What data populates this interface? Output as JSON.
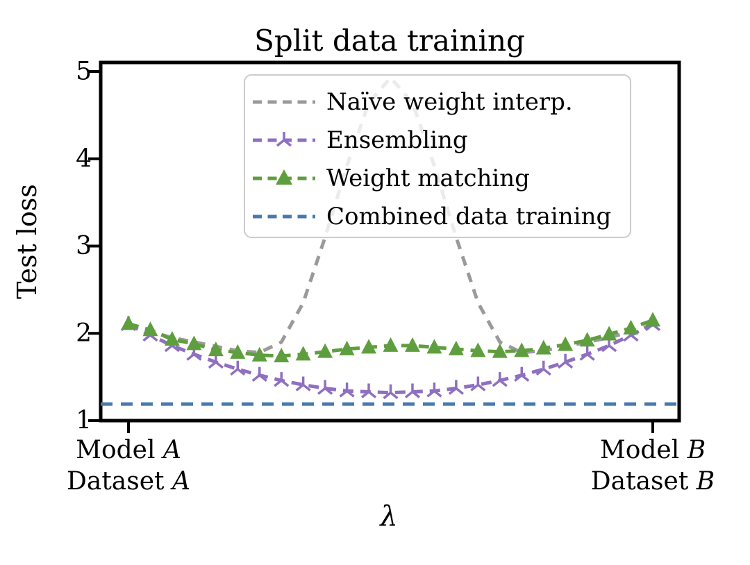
{
  "title": "Split data training",
  "y_axis": {
    "label": "Test loss"
  },
  "x_axis": {
    "label": "λ",
    "left": {
      "line1_text": "Model ",
      "line1_var": "A",
      "line2_text": "Dataset ",
      "line2_var": "A"
    },
    "right": {
      "line1_text": "Model ",
      "line1_var": "B",
      "line2_text": "Dataset ",
      "line2_var": "B"
    }
  },
  "legend": {
    "items": [
      {
        "label": "Naïve weight interp.",
        "color": "#9a9a9a",
        "marker": "none"
      },
      {
        "label": "Ensembling",
        "color": "#8e6fc0",
        "marker": "tri_up"
      },
      {
        "label": "Weight matching",
        "color": "#5f9e3e",
        "marker": "triangle_up"
      },
      {
        "label": "Combined data training",
        "color": "#4878b0",
        "marker": "none"
      }
    ]
  },
  "chart_data": {
    "type": "line",
    "title": "Split data training",
    "xlabel": "λ",
    "ylabel": "Test loss",
    "xlim": [
      0,
      1
    ],
    "ylim": [
      1,
      5
    ],
    "yticks": [
      1,
      2,
      3,
      4,
      5
    ],
    "xtick_labels": [
      "Model A / Dataset A",
      "Model B / Dataset B"
    ],
    "grid": false,
    "legend_location": "upper center",
    "x": [
      0,
      0.0417,
      0.0833,
      0.125,
      0.1667,
      0.2083,
      0.25,
      0.2917,
      0.3333,
      0.375,
      0.4167,
      0.4583,
      0.5,
      0.5417,
      0.5833,
      0.625,
      0.6667,
      0.7083,
      0.75,
      0.7917,
      0.8333,
      0.875,
      0.9167,
      0.9583,
      1
    ],
    "series": [
      {
        "id": "naive",
        "name": "Naïve weight interp.",
        "color": "#9a9a9a",
        "style": "dashed",
        "marker": null,
        "values": [
          2.1,
          2.02,
          1.95,
          1.9,
          1.85,
          1.8,
          1.78,
          1.9,
          2.35,
          3.1,
          3.92,
          4.64,
          4.93,
          4.64,
          3.92,
          3.1,
          2.35,
          1.9,
          1.78,
          1.8,
          1.85,
          1.9,
          1.95,
          2.02,
          2.1
        ]
      },
      {
        "id": "ensembling",
        "name": "Ensembling",
        "color": "#8e6fc0",
        "style": "dashed",
        "marker": "tri_up",
        "values": [
          2.1,
          1.98,
          1.86,
          1.76,
          1.67,
          1.59,
          1.52,
          1.46,
          1.41,
          1.37,
          1.34,
          1.33,
          1.32,
          1.33,
          1.34,
          1.37,
          1.41,
          1.46,
          1.52,
          1.59,
          1.67,
          1.76,
          1.86,
          1.98,
          2.1
        ]
      },
      {
        "id": "weight_matching",
        "name": "Weight matching",
        "color": "#5f9e3e",
        "style": "dashed",
        "marker": "triangle_up",
        "values": [
          2.11,
          2.04,
          1.93,
          1.88,
          1.81,
          1.78,
          1.75,
          1.74,
          1.76,
          1.79,
          1.82,
          1.84,
          1.86,
          1.86,
          1.84,
          1.82,
          1.8,
          1.79,
          1.8,
          1.83,
          1.87,
          1.92,
          1.99,
          2.06,
          2.15
        ]
      },
      {
        "id": "combined",
        "name": "Combined data training",
        "color": "#4878b0",
        "style": "dashed",
        "marker": null,
        "constant": 1.19
      }
    ]
  }
}
